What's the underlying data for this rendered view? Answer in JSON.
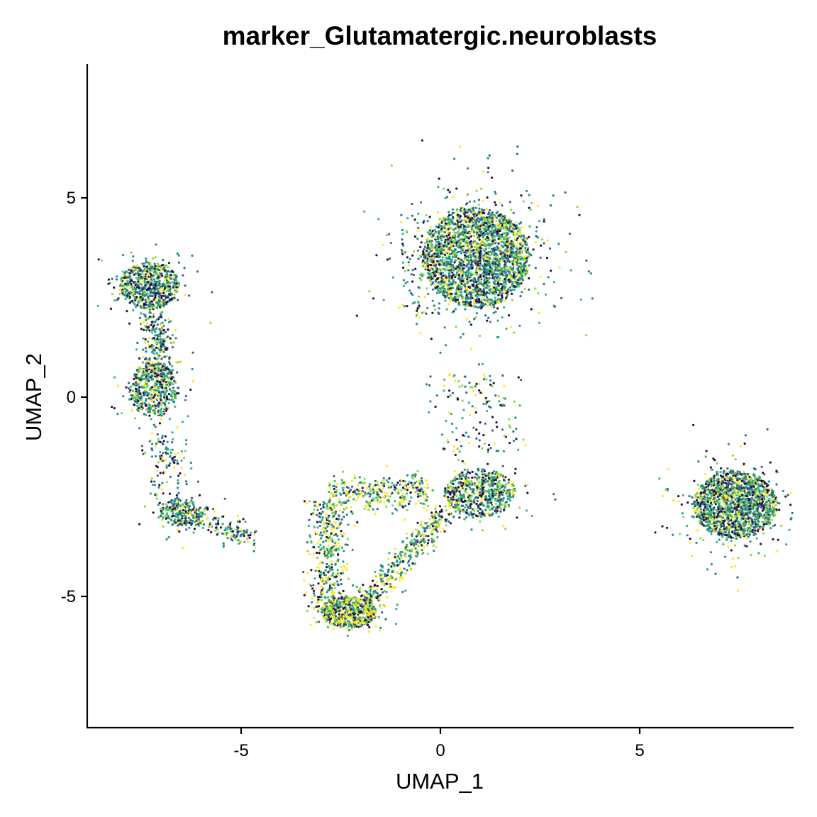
{
  "chart_data": {
    "type": "scatter",
    "title": "marker_Glutamatergic.neuroblasts",
    "xlabel": "UMAP_1",
    "ylabel": "UMAP_2",
    "xlim": [
      -8.8,
      8.8
    ],
    "ylim": [
      -8.8,
      8.8
    ],
    "xticks": [
      -5,
      0,
      5
    ],
    "yticks": [
      -5,
      0,
      5
    ],
    "xtick_labels": [
      "-5",
      "0",
      "5"
    ],
    "ytick_labels": [
      "-5",
      "0",
      "5"
    ],
    "grid": false,
    "legend": "none",
    "color_scale": "viridis",
    "colors": [
      "#2d0b45",
      "#31688e",
      "#21908c",
      "#35b779",
      "#8fd744",
      "#fde725"
    ],
    "clusters": [
      {
        "label": "top-center large cluster",
        "center": [
          0.9,
          3.5
        ],
        "spread": [
          1.35,
          1.25
        ],
        "n": 2600,
        "color_bias": 0.32
      },
      {
        "label": "right cluster",
        "center": [
          7.4,
          -2.7
        ],
        "spread": [
          1.05,
          0.85
        ],
        "n": 1700,
        "color_bias": 0.3
      },
      {
        "label": "left upper cluster",
        "center": [
          -7.3,
          2.8
        ],
        "spread": [
          0.75,
          0.6
        ],
        "n": 700,
        "color_bias": 0.25
      },
      {
        "label": "left middle cluster",
        "center": [
          -7.2,
          0.2
        ],
        "spread": [
          0.6,
          0.7
        ],
        "n": 550,
        "color_bias": 0.3
      },
      {
        "label": "left lower cluster",
        "center": [
          -6.5,
          -2.9
        ],
        "spread": [
          0.55,
          0.35
        ],
        "n": 260,
        "color_bias": 0.3
      },
      {
        "label": "mid-right cluster",
        "center": [
          1.0,
          -2.4
        ],
        "spread": [
          0.9,
          0.6
        ],
        "n": 650,
        "color_bias": 0.35
      },
      {
        "label": "bottom cluster",
        "center": [
          -2.3,
          -5.4
        ],
        "spread": [
          0.7,
          0.4
        ],
        "n": 550,
        "color_bias": 0.7
      }
    ]
  }
}
